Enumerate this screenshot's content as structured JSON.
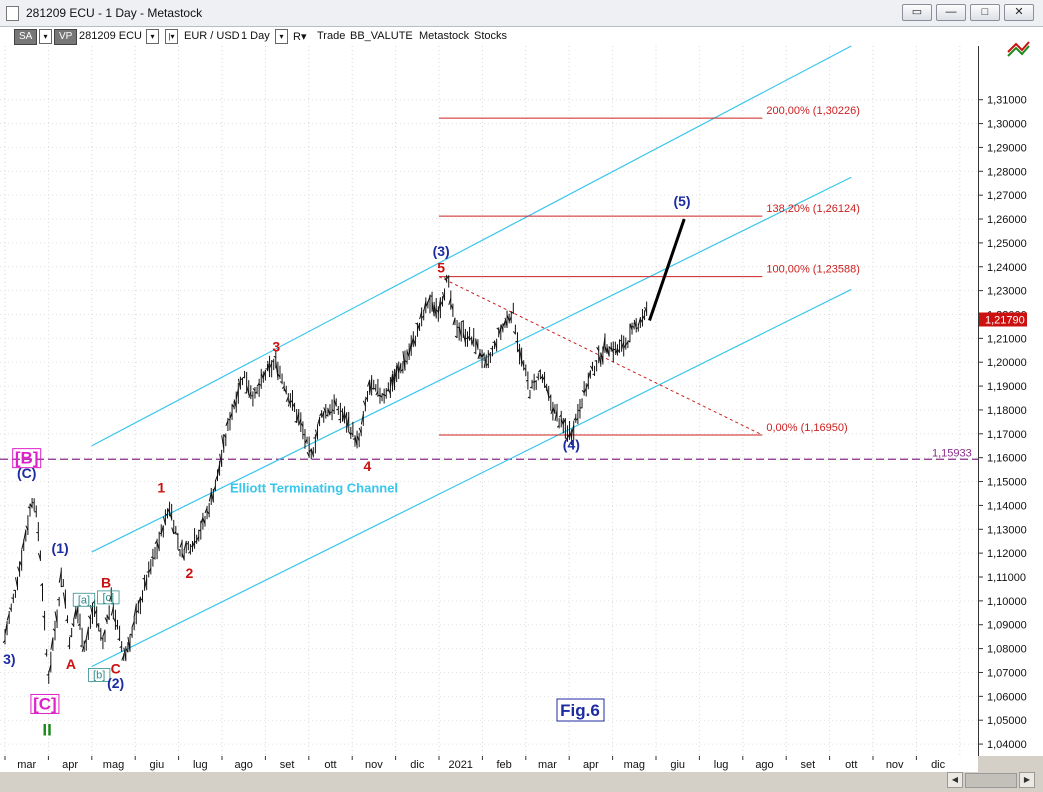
{
  "window": {
    "title": "281209 ECU - 1 Day - Metastock",
    "buttons": [
      "restore-all",
      "minimize",
      "maximize",
      "close"
    ]
  },
  "toolbar": {
    "sa": "SA",
    "vp": "VP",
    "symbol": "281209 ECU",
    "instrument": "EUR / USD",
    "interval": "1 Day",
    "r_label": "R",
    "trade": "Trade",
    "account": "BB_VALUTE",
    "provider": "Metastock",
    "category": "Stocks"
  },
  "chart_data": {
    "type": "ohlc",
    "title": "",
    "xlabel": "",
    "ylabel": "",
    "ylim": [
      1.035,
      1.3325
    ],
    "y_ticks": [
      "1,04000",
      "1,05000",
      "1,06000",
      "1,07000",
      "1,08000",
      "1,09000",
      "1,10000",
      "1,11000",
      "1,12000",
      "1,13000",
      "1,14000",
      "1,15000",
      "1,16000",
      "1,17000",
      "1,18000",
      "1,19000",
      "1,20000",
      "1,21000",
      "1,22000",
      "1,23000",
      "1,24000",
      "1,25000",
      "1,26000",
      "1,27000",
      "1,28000",
      "1,29000",
      "1,30000",
      "1,31000"
    ],
    "x_months": [
      "mar",
      "apr",
      "mag",
      "giu",
      "lug",
      "ago",
      "set",
      "ott",
      "nov",
      "dic",
      "2021",
      "feb",
      "mar",
      "apr",
      "mag",
      "giu",
      "lug",
      "ago",
      "set",
      "ott",
      "nov",
      "dic"
    ],
    "x_month_t": [
      0.5,
      1.5,
      2.5,
      3.5,
      4.5,
      5.5,
      6.5,
      7.5,
      8.5,
      9.5,
      10.5,
      11.5,
      12.5,
      13.5,
      14.5,
      15.5,
      16.5,
      17.5,
      18.5,
      19.5,
      20.5,
      21.5
    ],
    "last_price": "1,21790",
    "price_path": [
      [
        0,
        1.085
      ],
      [
        0.25,
        1.105
      ],
      [
        0.45,
        1.125
      ],
      [
        0.65,
        1.145
      ],
      [
        0.8,
        1.125
      ],
      [
        0.9,
        1.093
      ],
      [
        1.0,
        1.068
      ],
      [
        1.2,
        1.094
      ],
      [
        1.32,
        1.113
      ],
      [
        1.5,
        1.082
      ],
      [
        1.65,
        1.097
      ],
      [
        1.85,
        1.08
      ],
      [
        2.05,
        1.098
      ],
      [
        2.25,
        1.082
      ],
      [
        2.45,
        1.101
      ],
      [
        2.6,
        1.088
      ],
      [
        2.75,
        1.076
      ],
      [
        2.95,
        1.088
      ],
      [
        3.2,
        1.105
      ],
      [
        3.5,
        1.122
      ],
      [
        3.8,
        1.14
      ],
      [
        4.05,
        1.12
      ],
      [
        4.3,
        1.124
      ],
      [
        4.6,
        1.133
      ],
      [
        4.9,
        1.152
      ],
      [
        5.2,
        1.178
      ],
      [
        5.5,
        1.195
      ],
      [
        5.75,
        1.185
      ],
      [
        6.0,
        1.195
      ],
      [
        6.25,
        1.2
      ],
      [
        6.5,
        1.188
      ],
      [
        6.8,
        1.175
      ],
      [
        7.05,
        1.16
      ],
      [
        7.3,
        1.178
      ],
      [
        7.6,
        1.182
      ],
      [
        7.9,
        1.175
      ],
      [
        8.15,
        1.165
      ],
      [
        8.4,
        1.19
      ],
      [
        8.7,
        1.186
      ],
      [
        8.95,
        1.192
      ],
      [
        9.2,
        1.2
      ],
      [
        9.45,
        1.21
      ],
      [
        9.75,
        1.225
      ],
      [
        10.0,
        1.222
      ],
      [
        10.2,
        1.235
      ],
      [
        10.35,
        1.216
      ],
      [
        10.6,
        1.212
      ],
      [
        10.85,
        1.208
      ],
      [
        11.1,
        1.198
      ],
      [
        11.4,
        1.212
      ],
      [
        11.7,
        1.222
      ],
      [
        11.85,
        1.205
      ],
      [
        12.1,
        1.188
      ],
      [
        12.35,
        1.195
      ],
      [
        12.6,
        1.182
      ],
      [
        12.85,
        1.173
      ],
      [
        13.05,
        1.17
      ],
      [
        13.3,
        1.185
      ],
      [
        13.55,
        1.197
      ],
      [
        13.85,
        1.207
      ],
      [
        14.1,
        1.205
      ],
      [
        14.3,
        1.208
      ],
      [
        14.55,
        1.215
      ],
      [
        14.8,
        1.2222
      ]
    ],
    "final_projection": {
      "from": [
        14.85,
        1.2175
      ],
      "to": [
        15.65,
        1.26
      ]
    },
    "channels": [
      {
        "name": "Elliott Terminating Channel upper",
        "x1": 2.0,
        "y1": 1.165,
        "x2": 19.5,
        "y2": 1.3325,
        "color": "#39c6ec"
      },
      {
        "name": "Elliott Terminating Channel middle",
        "x1": 2.0,
        "y1": 1.1205,
        "x2": 19.5,
        "y2": 1.2775,
        "color": "#39c6ec"
      },
      {
        "name": "Elliott Terminating Channel lower",
        "x1": 2.0,
        "y1": 1.0725,
        "x2": 19.5,
        "y2": 1.2305,
        "color": "#39c6ec"
      }
    ],
    "fib_levels": [
      {
        "label": "200,00% (1,30226)",
        "value": 1.30226
      },
      {
        "label": "138,20% (1,26124)",
        "value": 1.26124
      },
      {
        "label": "100,00% (1,23588)",
        "value": 1.23588
      },
      {
        "label": "0,00% (1,16950)",
        "value": 1.1695
      }
    ],
    "fib_line_x": [
      10.0,
      17.45
    ],
    "fib_retrace_diagonal": {
      "from": [
        10.0,
        1.23588
      ],
      "to": [
        17.45,
        1.1695
      ]
    },
    "horizontal_level": {
      "label": "1,15933",
      "value": 1.15933
    },
    "channel_label": "Elliott Terminating Channel",
    "wave_labels": [
      {
        "text": "[B]",
        "t": 0.5,
        "y": 1.1575,
        "color": "#e020c8"
      },
      {
        "text": "(C)",
        "t": 0.5,
        "y": 1.1515,
        "color": "#1c2ba0"
      },
      {
        "text": "(1)",
        "t": 1.27,
        "y": 1.12,
        "color": "#1c2ba0"
      },
      {
        "text": "[a]",
        "t": 1.82,
        "y": 1.099,
        "color": "#2e8d8d"
      },
      {
        "text": "[c]",
        "t": 2.38,
        "y": 1.1,
        "color": "#2e8d8d"
      },
      {
        "text": "B",
        "t": 2.33,
        "y": 1.1055,
        "color": "#cc1010"
      },
      {
        "text": "A",
        "t": 1.52,
        "y": 1.0715,
        "color": "#cc1010"
      },
      {
        "text": "[b]",
        "t": 2.17,
        "y": 1.0675,
        "color": "#2e8d8d"
      },
      {
        "text": "C",
        "t": 2.55,
        "y": 1.0695,
        "color": "#cc1010"
      },
      {
        "text": "(2)",
        "t": 2.55,
        "y": 1.0635,
        "color": "#1c2ba0"
      },
      {
        "text": "[C]",
        "t": 0.92,
        "y": 1.0545,
        "color": "#e020c8"
      },
      {
        "text": "II",
        "t": 0.97,
        "y": 1.0435,
        "color": "#1a8a1a"
      },
      {
        "text": "3)",
        "t": 0.1,
        "y": 1.0735,
        "color": "#1c2ba0"
      },
      {
        "text": "1",
        "t": 3.6,
        "y": 1.1455,
        "color": "#cc1010"
      },
      {
        "text": "2",
        "t": 4.25,
        "y": 1.1095,
        "color": "#cc1010"
      },
      {
        "text": "3",
        "t": 6.25,
        "y": 1.2045,
        "color": "#cc1010"
      },
      {
        "text": "4",
        "t": 8.35,
        "y": 1.1545,
        "color": "#cc1010"
      },
      {
        "text": "(3)",
        "t": 10.05,
        "y": 1.2445,
        "color": "#1c2ba0"
      },
      {
        "text": "5",
        "t": 10.05,
        "y": 1.2375,
        "color": "#cc1010"
      },
      {
        "text": "(4)",
        "t": 13.05,
        "y": 1.1635,
        "color": "#1c2ba0"
      },
      {
        "text": "(5)",
        "t": 15.6,
        "y": 1.2655,
        "color": "#1c2ba0"
      }
    ],
    "annotations": [
      "Fig.6"
    ]
  }
}
